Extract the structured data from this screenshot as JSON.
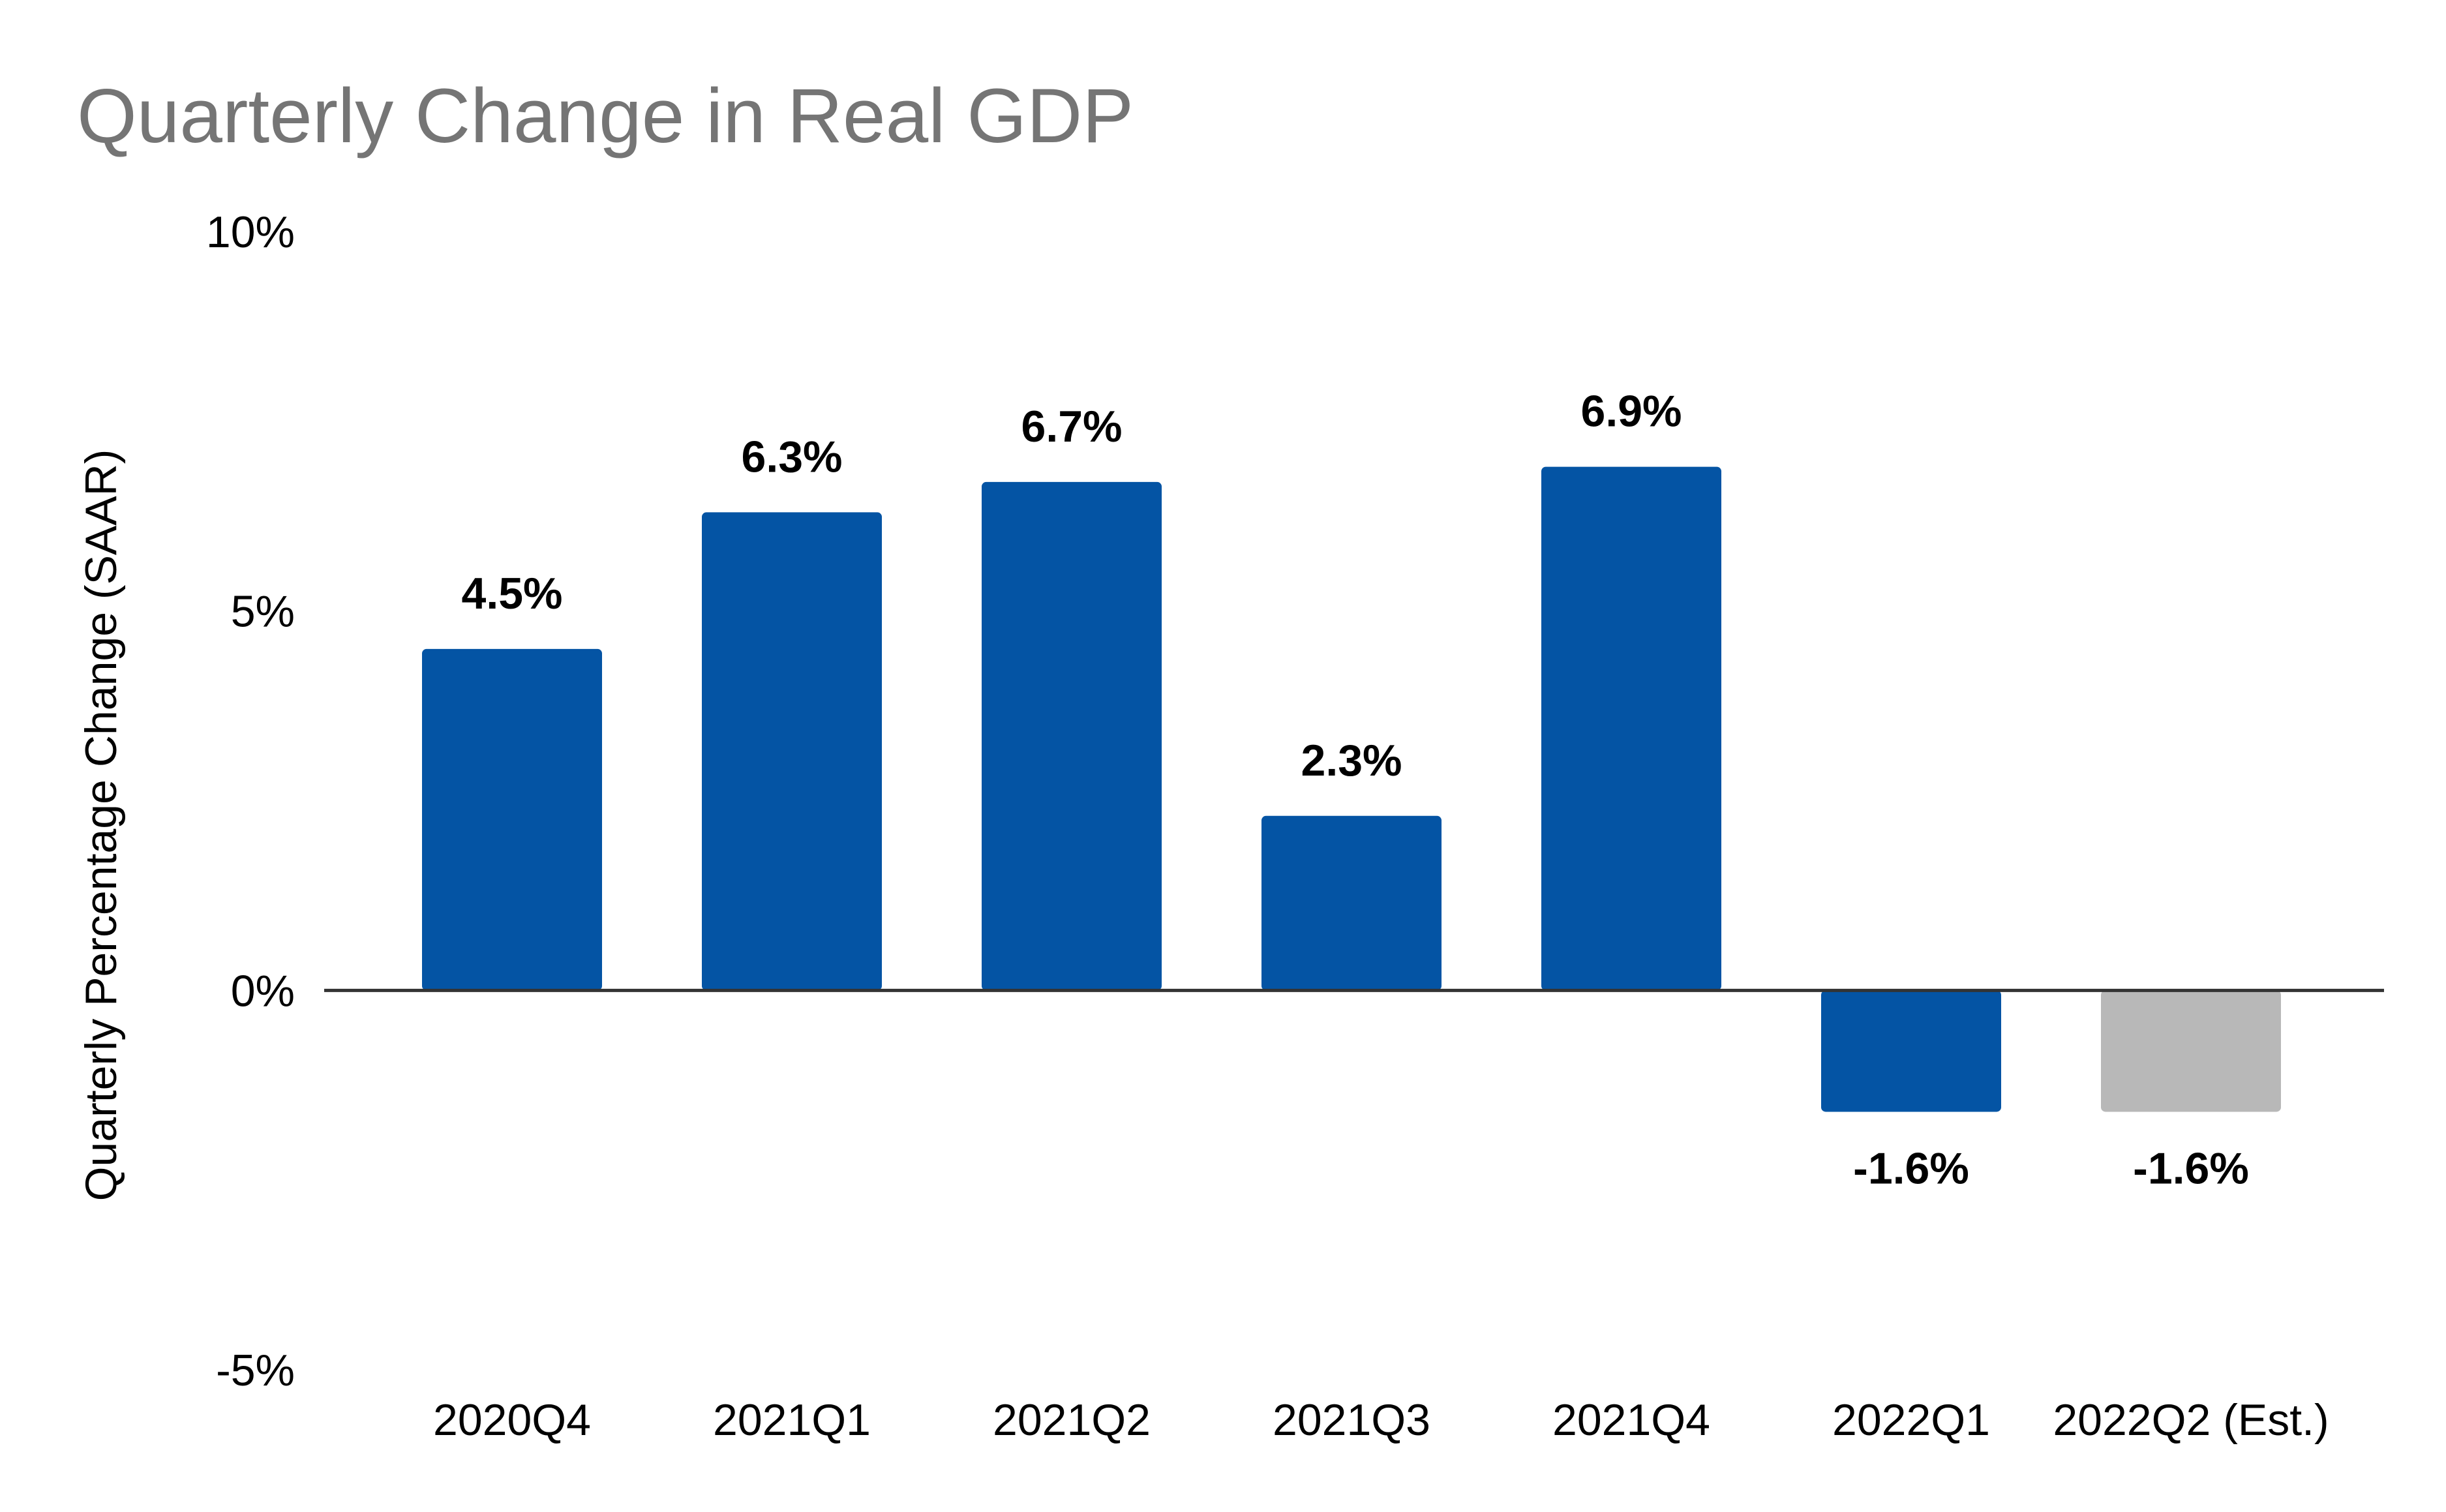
{
  "chart_data": {
    "type": "bar",
    "title": "Quarterly Change in Real GDP",
    "xlabel": "",
    "ylabel": "Quarterly Percentage Change (SAAR)",
    "ylim": [
      -5,
      10
    ],
    "y_ticks": [
      10,
      5,
      0,
      -5
    ],
    "y_tick_labels": [
      "10%",
      "5%",
      "0%",
      "-5%"
    ],
    "categories": [
      "2020Q4",
      "2021Q1",
      "2021Q2",
      "2021Q3",
      "2021Q4",
      "2022Q1",
      "2022Q2 (Est.)"
    ],
    "values": [
      4.5,
      6.3,
      6.7,
      2.3,
      6.9,
      -1.6,
      -1.6
    ],
    "data_labels": [
      "4.5%",
      "6.3%",
      "6.7%",
      "2.3%",
      "6.9%",
      "-1.6%",
      "-1.6%"
    ],
    "bar_colors": [
      "#0454a4",
      "#0454a4",
      "#0454a4",
      "#0454a4",
      "#0454a4",
      "#0454a4",
      "#b8b8b8"
    ],
    "grid": false,
    "legend": "none"
  },
  "colors": {
    "bar": "#0454a4",
    "estimate_bar": "#b8b8b8",
    "title": "#757575",
    "zero_line": "#333333"
  }
}
